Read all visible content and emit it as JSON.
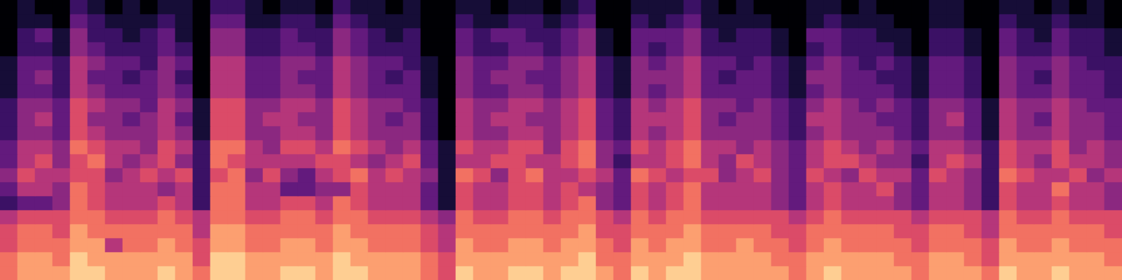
{
  "chart_data": {
    "type": "heatmap",
    "color": "magma",
    "tick_labels": false,
    "grid": false,
    "color_range": [
      0,
      10
    ],
    "cells": [
      [
        0,
        1,
        0,
        0,
        2,
        1,
        0,
        1,
        0,
        1,
        1,
        0,
        2,
        2,
        1,
        0,
        1,
        1,
        0,
        2,
        1,
        1,
        0,
        1,
        0,
        0,
        1,
        1,
        0,
        1,
        1,
        0,
        1,
        2,
        0,
        0,
        1,
        1,
        1,
        2,
        1,
        0,
        1,
        0,
        0,
        0,
        1,
        1,
        0,
        1,
        0,
        0,
        0,
        1,
        1,
        0,
        0,
        1,
        1,
        0,
        1,
        0,
        1,
        0
      ],
      [
        0,
        1,
        1,
        0,
        3,
        2,
        1,
        1,
        1,
        2,
        1,
        0,
        3,
        3,
        1,
        1,
        2,
        2,
        1,
        3,
        2,
        1,
        1,
        1,
        0,
        0,
        2,
        1,
        1,
        2,
        2,
        1,
        2,
        3,
        0,
        0,
        2,
        1,
        2,
        3,
        1,
        1,
        1,
        1,
        0,
        0,
        1,
        2,
        1,
        1,
        1,
        0,
        0,
        1,
        1,
        0,
        0,
        2,
        1,
        1,
        2,
        1,
        1,
        0
      ],
      [
        0,
        2,
        3,
        1,
        4,
        2,
        2,
        1,
        2,
        3,
        1,
        0,
        4,
        4,
        2,
        2,
        3,
        2,
        2,
        4,
        3,
        2,
        1,
        2,
        0,
        0,
        3,
        2,
        3,
        3,
        2,
        2,
        3,
        4,
        1,
        0,
        3,
        3,
        3,
        4,
        2,
        1,
        2,
        2,
        1,
        0,
        3,
        3,
        2,
        2,
        1,
        1,
        0,
        2,
        2,
        1,
        0,
        3,
        2,
        1,
        3,
        2,
        2,
        1
      ],
      [
        0,
        2,
        2,
        1,
        4,
        3,
        2,
        2,
        2,
        3,
        2,
        0,
        4,
        4,
        2,
        2,
        3,
        3,
        2,
        4,
        3,
        2,
        2,
        2,
        0,
        0,
        3,
        2,
        2,
        3,
        3,
        2,
        3,
        4,
        1,
        0,
        3,
        2,
        3,
        4,
        2,
        2,
        2,
        2,
        1,
        0,
        2,
        3,
        2,
        2,
        2,
        1,
        0,
        2,
        2,
        1,
        0,
        3,
        2,
        2,
        3,
        2,
        2,
        1
      ],
      [
        1,
        3,
        3,
        2,
        5,
        4,
        3,
        3,
        2,
        4,
        3,
        0,
        5,
        5,
        3,
        3,
        4,
        4,
        3,
        5,
        4,
        3,
        3,
        2,
        1,
        0,
        4,
        3,
        3,
        4,
        4,
        3,
        4,
        5,
        2,
        1,
        4,
        3,
        4,
        5,
        3,
        3,
        2,
        3,
        2,
        1,
        3,
        4,
        3,
        2,
        3,
        2,
        1,
        3,
        3,
        2,
        0,
        4,
        3,
        3,
        4,
        3,
        2,
        2
      ],
      [
        1,
        3,
        4,
        2,
        5,
        3,
        3,
        2,
        3,
        4,
        2,
        0,
        5,
        5,
        3,
        3,
        4,
        3,
        3,
        5,
        4,
        3,
        2,
        3,
        1,
        0,
        4,
        3,
        4,
        4,
        3,
        3,
        4,
        5,
        2,
        1,
        4,
        4,
        4,
        5,
        3,
        2,
        3,
        3,
        2,
        1,
        4,
        4,
        3,
        3,
        2,
        2,
        1,
        3,
        3,
        2,
        0,
        4,
        3,
        2,
        4,
        3,
        3,
        2
      ],
      [
        1,
        3,
        3,
        2,
        5,
        4,
        3,
        3,
        3,
        4,
        3,
        0,
        5,
        5,
        3,
        3,
        4,
        4,
        3,
        5,
        4,
        3,
        3,
        3,
        1,
        0,
        4,
        3,
        3,
        4,
        4,
        3,
        4,
        5,
        2,
        1,
        4,
        3,
        4,
        5,
        3,
        3,
        3,
        3,
        2,
        1,
        3,
        4,
        3,
        3,
        3,
        2,
        1,
        3,
        3,
        2,
        0,
        4,
        3,
        3,
        4,
        3,
        3,
        2
      ],
      [
        2,
        4,
        4,
        3,
        6,
        5,
        4,
        4,
        3,
        5,
        4,
        1,
        6,
        6,
        4,
        4,
        5,
        5,
        4,
        6,
        5,
        4,
        4,
        3,
        2,
        0,
        5,
        4,
        4,
        5,
        5,
        4,
        5,
        6,
        3,
        2,
        5,
        4,
        5,
        6,
        4,
        4,
        3,
        4,
        3,
        2,
        4,
        5,
        4,
        3,
        4,
        3,
        2,
        4,
        4,
        3,
        1,
        5,
        4,
        4,
        5,
        4,
        3,
        3
      ],
      [
        2,
        4,
        5,
        3,
        6,
        4,
        4,
        3,
        4,
        5,
        3,
        1,
        6,
        6,
        4,
        5,
        5,
        4,
        4,
        6,
        5,
        4,
        3,
        4,
        2,
        0,
        5,
        4,
        5,
        5,
        4,
        4,
        5,
        6,
        3,
        2,
        5,
        5,
        5,
        6,
        4,
        3,
        4,
        4,
        3,
        2,
        5,
        5,
        4,
        4,
        3,
        3,
        2,
        4,
        5,
        3,
        1,
        5,
        4,
        3,
        5,
        4,
        4,
        3
      ],
      [
        2,
        4,
        4,
        3,
        6,
        5,
        4,
        4,
        4,
        5,
        4,
        1,
        6,
        6,
        4,
        4,
        5,
        5,
        4,
        6,
        5,
        4,
        4,
        4,
        2,
        0,
        5,
        4,
        4,
        5,
        5,
        4,
        5,
        6,
        3,
        2,
        5,
        4,
        5,
        6,
        4,
        4,
        4,
        4,
        3,
        2,
        4,
        5,
        4,
        4,
        4,
        3,
        2,
        4,
        4,
        3,
        1,
        5,
        4,
        4,
        5,
        4,
        4,
        3
      ],
      [
        3,
        5,
        5,
        4,
        7,
        6,
        5,
        5,
        4,
        6,
        5,
        2,
        7,
        7,
        5,
        4,
        6,
        6,
        5,
        7,
        6,
        5,
        4,
        5,
        3,
        1,
        6,
        5,
        5,
        6,
        6,
        4,
        6,
        7,
        4,
        3,
        6,
        5,
        6,
        7,
        5,
        5,
        4,
        5,
        4,
        3,
        5,
        6,
        5,
        4,
        5,
        4,
        3,
        5,
        5,
        4,
        2,
        6,
        5,
        5,
        6,
        4,
        5,
        4
      ],
      [
        3,
        5,
        6,
        4,
        6,
        7,
        5,
        4,
        5,
        6,
        4,
        2,
        7,
        6,
        5,
        5,
        5,
        5,
        6,
        6,
        5,
        4,
        5,
        6,
        3,
        1,
        5,
        5,
        6,
        6,
        5,
        5,
        6,
        7,
        4,
        2,
        5,
        5,
        6,
        7,
        5,
        4,
        6,
        5,
        4,
        3,
        5,
        6,
        6,
        5,
        4,
        4,
        2,
        5,
        6,
        5,
        2,
        6,
        5,
        4,
        6,
        5,
        5,
        4
      ],
      [
        4,
        6,
        5,
        5,
        6,
        6,
        4,
        5,
        6,
        5,
        6,
        2,
        6,
        7,
        4,
        6,
        4,
        3,
        5,
        6,
        7,
        5,
        6,
        5,
        4,
        1,
        7,
        6,
        4,
        6,
        7,
        5,
        5,
        6,
        5,
        3,
        7,
        6,
        5,
        6,
        6,
        4,
        5,
        6,
        4,
        3,
        6,
        5,
        4,
        6,
        5,
        5,
        3,
        6,
        5,
        4,
        2,
        7,
        6,
        5,
        5,
        6,
        4,
        5
      ],
      [
        3,
        5,
        5,
        4,
        7,
        6,
        5,
        5,
        5,
        4,
        5,
        2,
        7,
        7,
        5,
        5,
        3,
        3,
        4,
        4,
        6,
        5,
        5,
        5,
        3,
        1,
        6,
        5,
        5,
        6,
        6,
        5,
        6,
        5,
        4,
        3,
        6,
        5,
        6,
        7,
        5,
        5,
        5,
        5,
        4,
        3,
        5,
        6,
        5,
        5,
        6,
        4,
        3,
        5,
        5,
        4,
        2,
        6,
        5,
        5,
        7,
        5,
        5,
        4
      ],
      [
        2,
        3,
        3,
        4,
        7,
        6,
        5,
        5,
        5,
        6,
        5,
        2,
        7,
        7,
        5,
        5,
        6,
        6,
        5,
        7,
        6,
        5,
        5,
        5,
        3,
        1,
        6,
        5,
        5,
        6,
        6,
        5,
        6,
        7,
        4,
        3,
        6,
        5,
        6,
        7,
        5,
        5,
        5,
        5,
        4,
        3,
        5,
        6,
        5,
        5,
        5,
        4,
        3,
        5,
        5,
        4,
        2,
        6,
        5,
        5,
        6,
        5,
        5,
        4
      ],
      [
        5,
        6,
        6,
        6,
        7,
        7,
        6,
        6,
        6,
        7,
        6,
        5,
        7,
        7,
        6,
        6,
        7,
        7,
        6,
        7,
        7,
        6,
        6,
        6,
        5,
        4,
        7,
        6,
        6,
        7,
        7,
        6,
        7,
        7,
        6,
        5,
        7,
        6,
        7,
        7,
        6,
        6,
        6,
        6,
        6,
        5,
        6,
        7,
        6,
        6,
        6,
        6,
        5,
        6,
        6,
        6,
        5,
        7,
        6,
        6,
        7,
        6,
        6,
        6
      ],
      [
        6,
        7,
        7,
        6,
        8,
        7,
        7,
        7,
        7,
        7,
        7,
        5,
        8,
        8,
        7,
        7,
        7,
        7,
        7,
        8,
        7,
        7,
        7,
        7,
        6,
        5,
        7,
        7,
        7,
        7,
        7,
        7,
        7,
        8,
        6,
        6,
        7,
        7,
        7,
        8,
        7,
        7,
        7,
        7,
        6,
        6,
        7,
        7,
        7,
        7,
        7,
        6,
        6,
        7,
        7,
        6,
        5,
        7,
        7,
        7,
        7,
        7,
        7,
        6
      ],
      [
        6,
        7,
        7,
        7,
        8,
        8,
        5,
        7,
        7,
        8,
        7,
        6,
        8,
        8,
        7,
        7,
        8,
        8,
        7,
        8,
        8,
        7,
        7,
        7,
        6,
        5,
        8,
        7,
        7,
        8,
        8,
        7,
        8,
        8,
        7,
        6,
        8,
        7,
        8,
        8,
        7,
        7,
        8,
        7,
        7,
        6,
        7,
        8,
        7,
        7,
        7,
        7,
        6,
        7,
        7,
        7,
        6,
        8,
        7,
        7,
        8,
        7,
        7,
        7
      ],
      [
        7,
        8,
        8,
        7,
        9,
        8,
        8,
        8,
        8,
        8,
        8,
        6,
        9,
        9,
        8,
        8,
        8,
        8,
        8,
        9,
        8,
        8,
        8,
        8,
        7,
        6,
        8,
        8,
        8,
        8,
        8,
        8,
        8,
        9,
        7,
        7,
        8,
        8,
        8,
        9,
        8,
        8,
        8,
        8,
        7,
        7,
        8,
        8,
        8,
        8,
        8,
        7,
        7,
        8,
        8,
        7,
        6,
        8,
        8,
        8,
        8,
        8,
        8,
        7
      ],
      [
        7,
        8,
        8,
        8,
        9,
        9,
        8,
        8,
        8,
        9,
        8,
        7,
        9,
        9,
        8,
        8,
        9,
        9,
        8,
        9,
        9,
        8,
        8,
        8,
        7,
        6,
        9,
        8,
        8,
        9,
        9,
        8,
        9,
        9,
        8,
        7,
        9,
        8,
        9,
        9,
        8,
        8,
        8,
        8,
        8,
        7,
        8,
        9,
        8,
        8,
        8,
        8,
        7,
        8,
        8,
        8,
        7,
        9,
        8,
        8,
        9,
        8,
        8,
        8
      ]
    ]
  }
}
